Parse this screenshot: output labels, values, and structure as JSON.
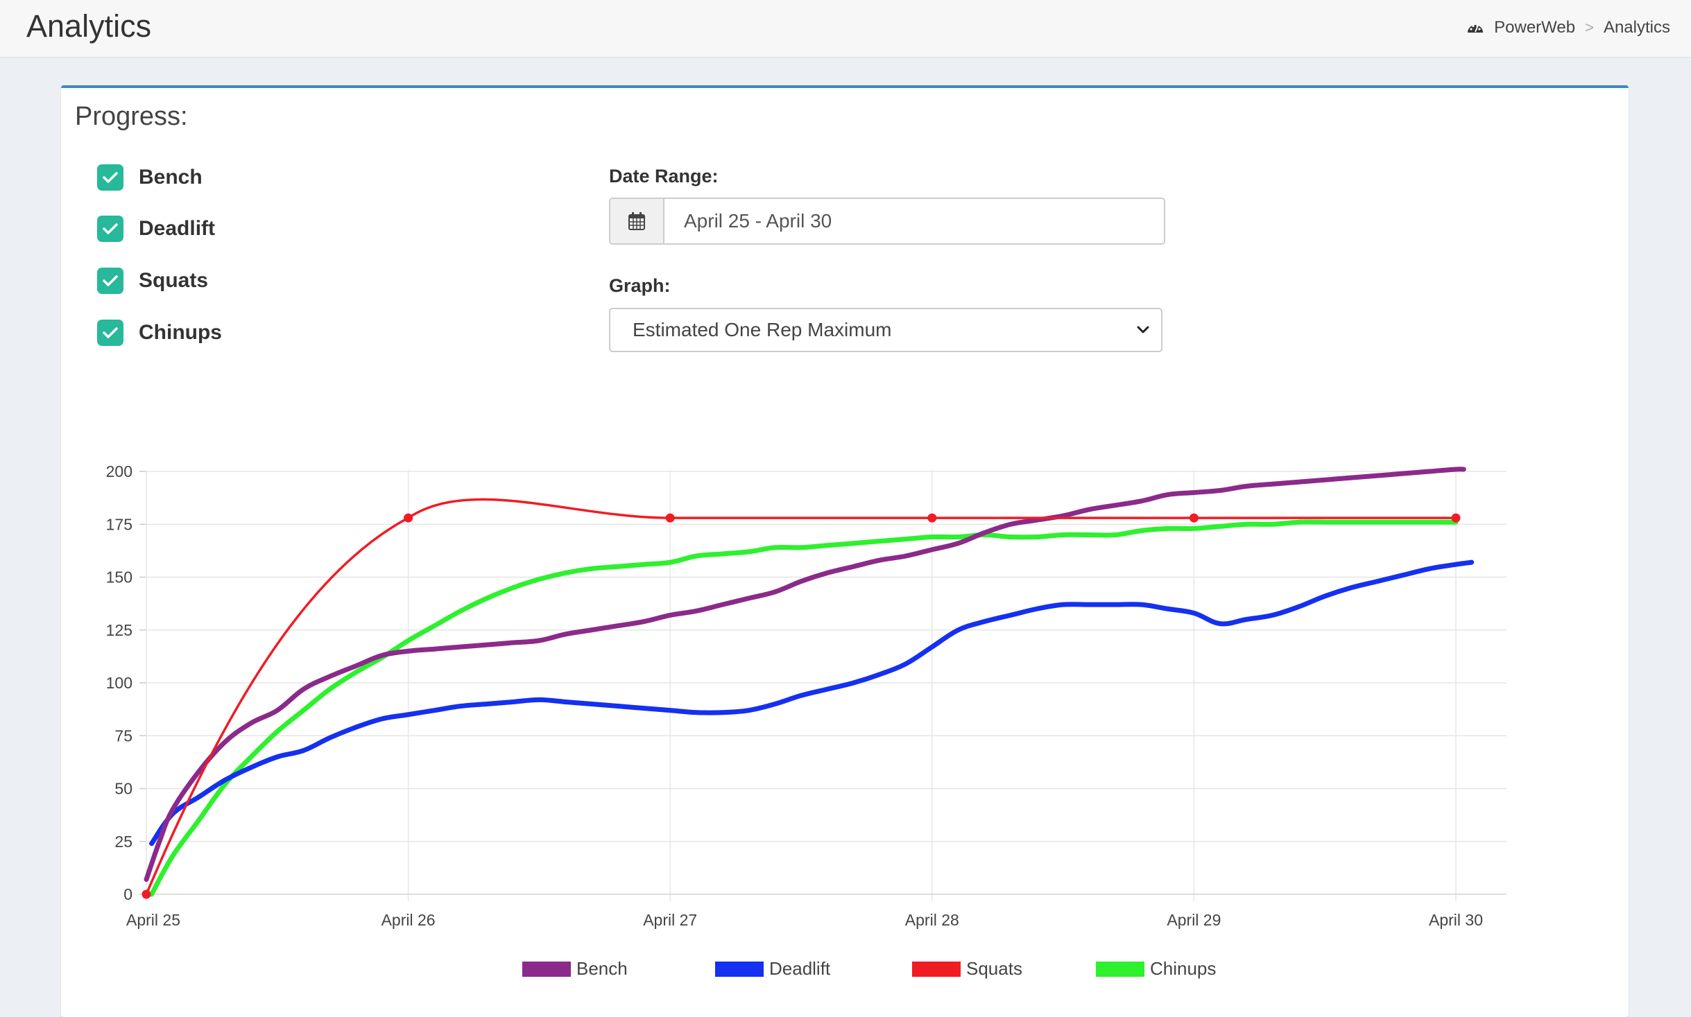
{
  "header": {
    "title": "Analytics",
    "breadcrumb": {
      "home": "PowerWeb",
      "separator": ">",
      "current": "Analytics"
    }
  },
  "card": {
    "title": "Progress:",
    "exercises": [
      {
        "label": "Bench",
        "checked": true
      },
      {
        "label": "Deadlift",
        "checked": true
      },
      {
        "label": "Squats",
        "checked": true
      },
      {
        "label": "Chinups",
        "checked": true
      }
    ],
    "date_range": {
      "label": "Date Range:",
      "value": "April 25 - April 30"
    },
    "graph": {
      "label": "Graph:",
      "selected": "Estimated One Rep Maximum"
    }
  },
  "colors": {
    "accent": "#3c8dbc",
    "checkbox": "#26b99a",
    "bench": "#8b2a8b",
    "deadlift": "#1430f0",
    "squats": "#f01c24",
    "chinups": "#2ef02e"
  },
  "chart_data": {
    "type": "line",
    "categories": [
      "April 25",
      "April 26",
      "April 27",
      "April 28",
      "April 29",
      "April 30"
    ],
    "ylim": [
      0,
      200
    ],
    "yticks": [
      0,
      25,
      50,
      75,
      100,
      125,
      150,
      175,
      200
    ],
    "legend_position": "bottom",
    "grid": true,
    "series": [
      {
        "name": "Bench",
        "color": "#8b2a8b",
        "x": [
          0,
          0.05,
          0.1,
          0.2,
          0.3,
          0.4,
          0.5,
          0.6,
          0.7,
          0.8,
          0.9,
          1.0,
          1.1,
          1.2,
          1.3,
          1.4,
          1.5,
          1.6,
          1.7,
          1.8,
          1.9,
          2.0,
          2.1,
          2.2,
          2.3,
          2.4,
          2.5,
          2.6,
          2.7,
          2.8,
          2.9,
          3.0,
          3.1,
          3.2,
          3.3,
          3.4,
          3.5,
          3.6,
          3.7,
          3.8,
          3.9,
          4.0,
          4.1,
          4.2,
          4.3,
          4.4,
          4.5,
          4.6,
          4.7,
          4.8,
          4.9,
          5.0,
          5.03
        ],
        "values": [
          7,
          25,
          40,
          58,
          72,
          81,
          87,
          97,
          103,
          108,
          113,
          115,
          116,
          117,
          118,
          119,
          120,
          123,
          125,
          127,
          129,
          132,
          134,
          137,
          140,
          143,
          148,
          152,
          155,
          158,
          160,
          163,
          166,
          171,
          175,
          177,
          179,
          182,
          184,
          186,
          189,
          190,
          191,
          193,
          194,
          195,
          196,
          197,
          198,
          199,
          200,
          201,
          201
        ]
      },
      {
        "name": "Deadlift",
        "color": "#1430f0",
        "x": [
          0.02,
          0.1,
          0.2,
          0.3,
          0.4,
          0.5,
          0.6,
          0.7,
          0.8,
          0.9,
          1.0,
          1.1,
          1.2,
          1.3,
          1.4,
          1.5,
          1.6,
          1.7,
          1.8,
          1.9,
          2.0,
          2.1,
          2.2,
          2.3,
          2.4,
          2.5,
          2.6,
          2.7,
          2.8,
          2.9,
          3.0,
          3.1,
          3.2,
          3.3,
          3.4,
          3.5,
          3.6,
          3.7,
          3.8,
          3.9,
          4.0,
          4.1,
          4.2,
          4.3,
          4.4,
          4.5,
          4.6,
          4.7,
          4.8,
          4.9,
          5.0,
          5.06
        ],
        "values": [
          24,
          38,
          46,
          54,
          60,
          65,
          68,
          74,
          79,
          83,
          85,
          87,
          89,
          90,
          91,
          92,
          91,
          90,
          89,
          88,
          87,
          86,
          86,
          87,
          90,
          94,
          97,
          100,
          104,
          109,
          117,
          125,
          129,
          132,
          135,
          137,
          137,
          137,
          137,
          135,
          133,
          128,
          130,
          132,
          136,
          141,
          145,
          148,
          151,
          154,
          156,
          157
        ]
      },
      {
        "name": "Squats",
        "color": "#f01c24",
        "x": [
          0,
          1,
          2,
          3,
          4,
          5
        ],
        "values": [
          0,
          178,
          178,
          178,
          178,
          178
        ]
      },
      {
        "name": "Chinups",
        "color": "#2ef02e",
        "x": [
          0.02,
          0.1,
          0.2,
          0.3,
          0.4,
          0.5,
          0.6,
          0.7,
          0.8,
          0.9,
          1.0,
          1.1,
          1.2,
          1.3,
          1.4,
          1.5,
          1.6,
          1.7,
          1.8,
          1.9,
          2.0,
          2.1,
          2.2,
          2.3,
          2.4,
          2.5,
          2.6,
          2.7,
          2.8,
          2.9,
          3.0,
          3.1,
          3.2,
          3.3,
          3.4,
          3.5,
          3.6,
          3.7,
          3.8,
          3.9,
          4.0,
          4.1,
          4.2,
          4.3,
          4.4,
          4.5,
          4.6,
          4.7,
          4.8,
          4.9,
          5.0
        ],
        "values": [
          0,
          18,
          35,
          52,
          65,
          77,
          87,
          97,
          105,
          112,
          120,
          127,
          134,
          140,
          145,
          149,
          152,
          154,
          155,
          156,
          157,
          160,
          161,
          162,
          164,
          164,
          165,
          166,
          167,
          168,
          169,
          169,
          170,
          169,
          169,
          170,
          170,
          170,
          172,
          173,
          173,
          174,
          175,
          175,
          176,
          176,
          176,
          176,
          176,
          176,
          176
        ]
      }
    ]
  }
}
